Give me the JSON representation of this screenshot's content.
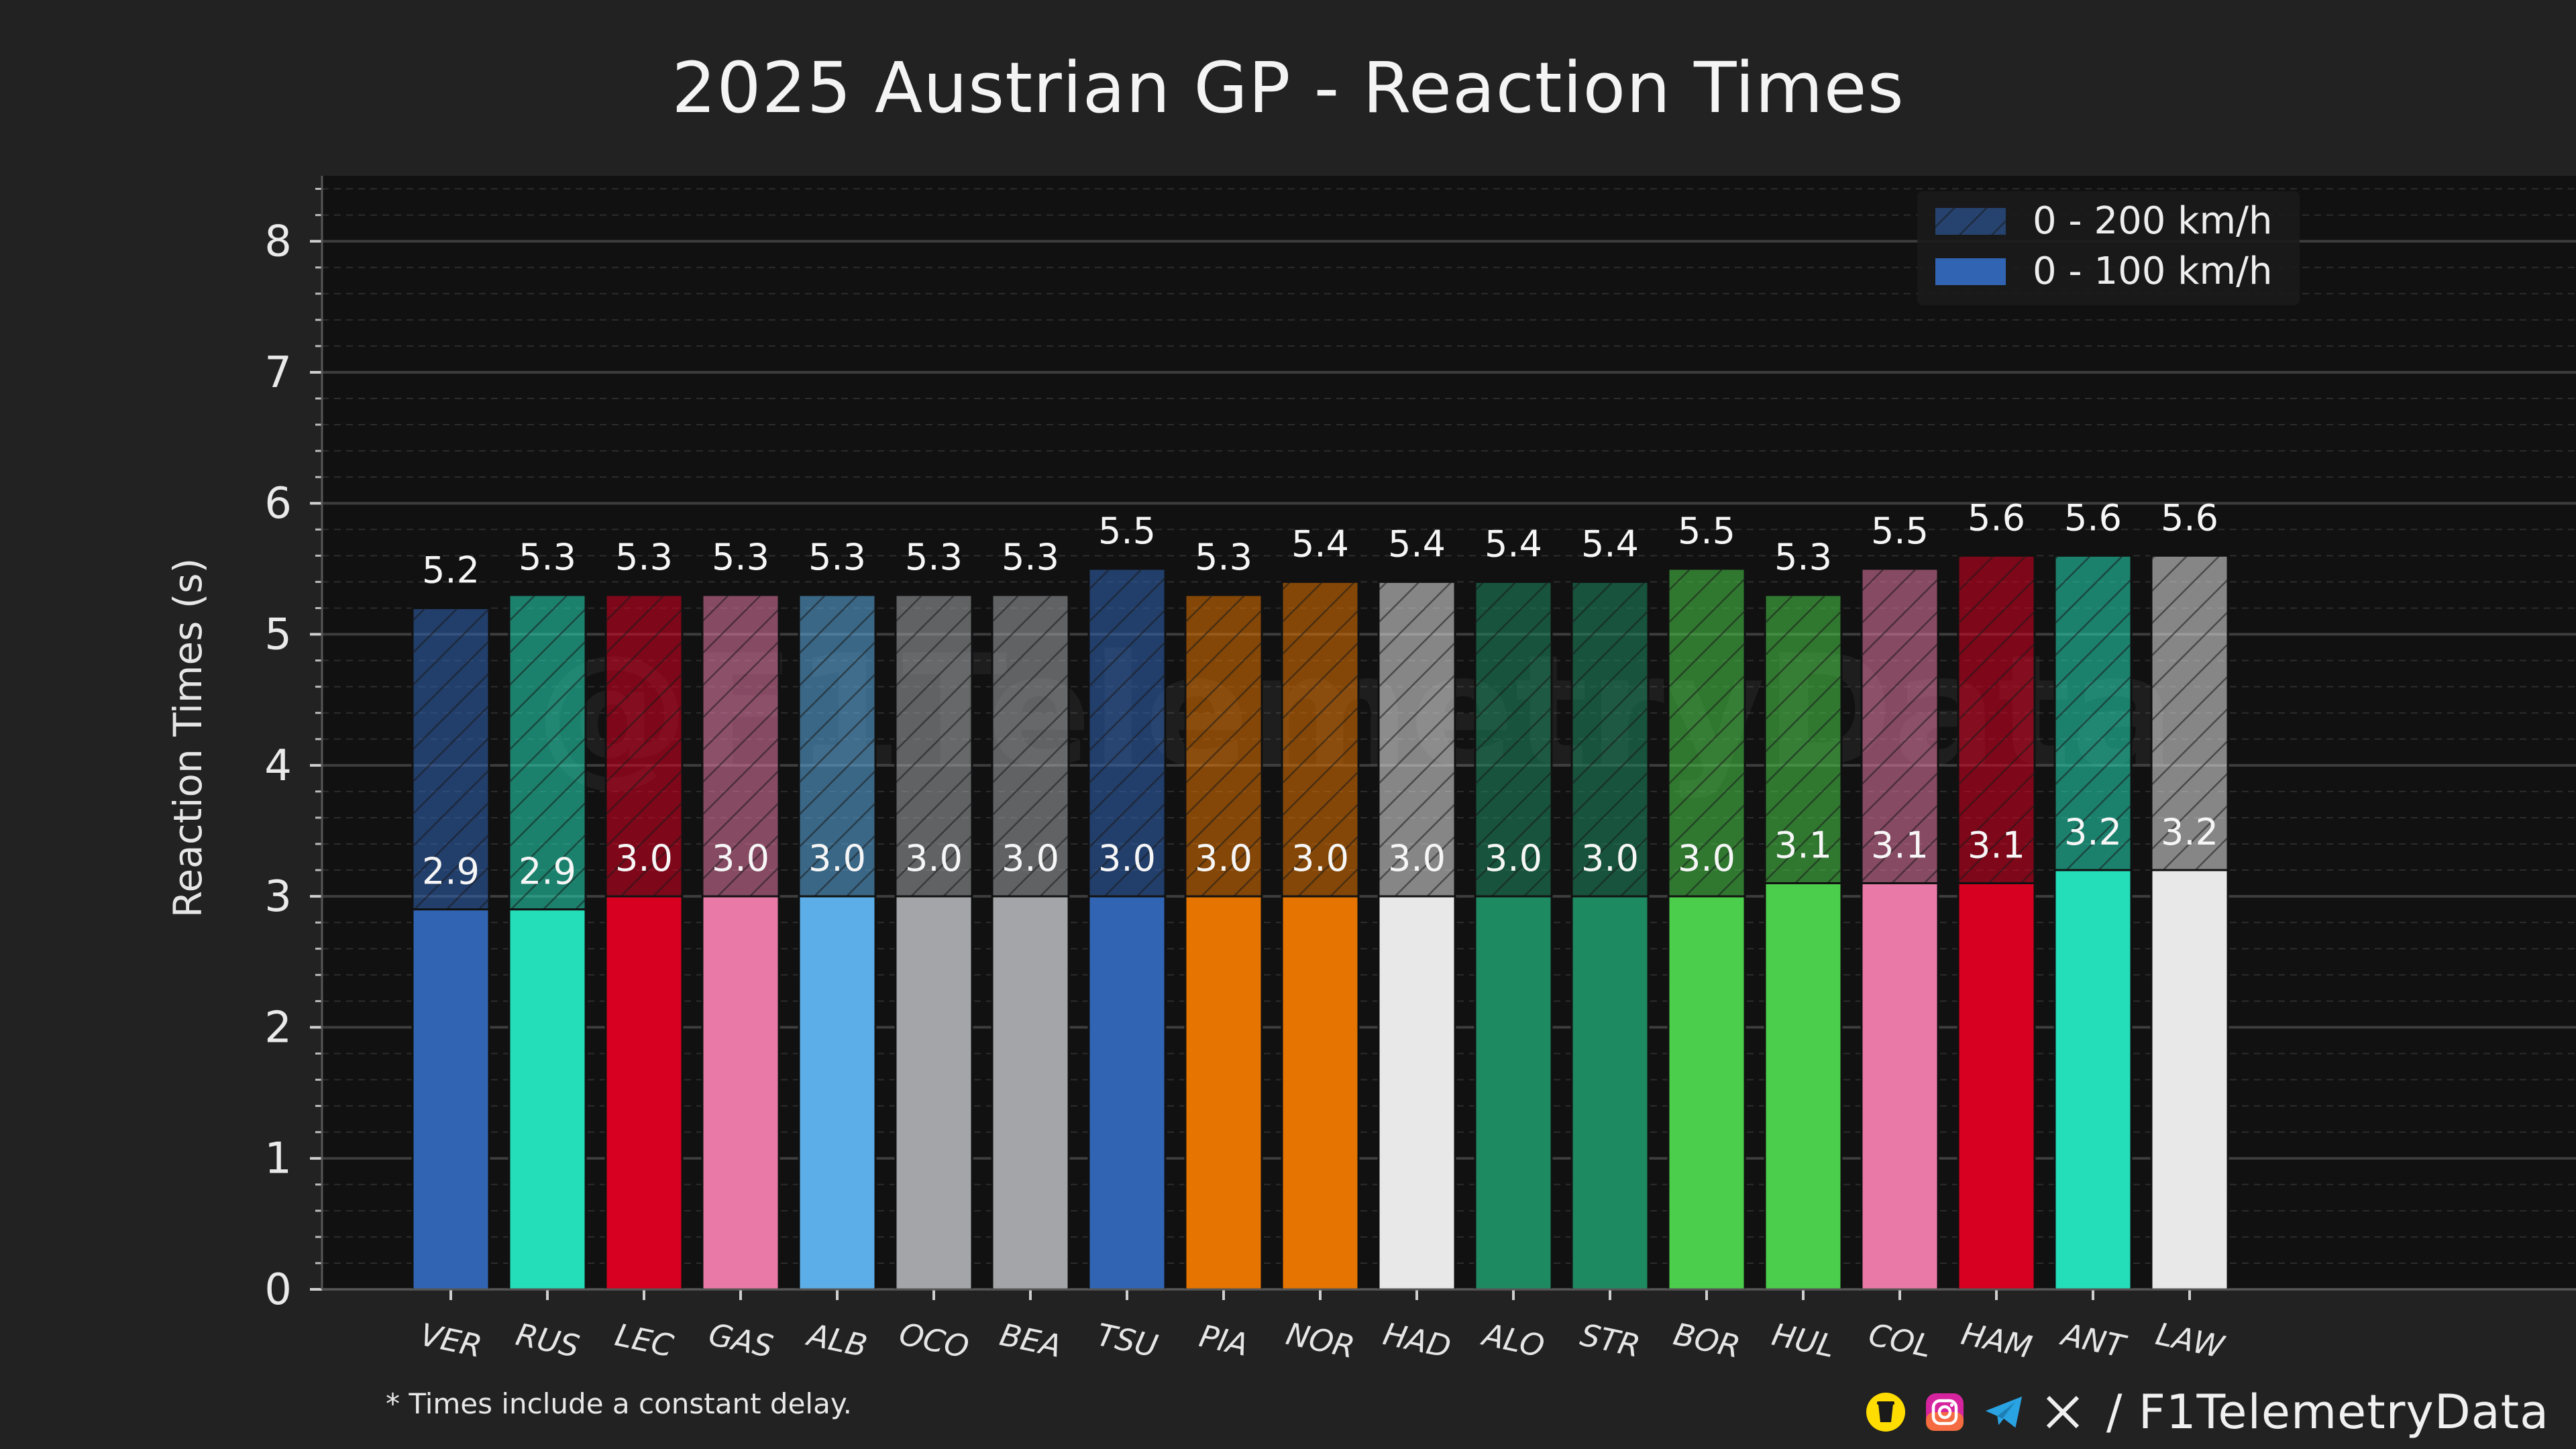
{
  "title": "2025 Austrian GP - Reaction Times",
  "footnote": "* Times include a constant delay.",
  "handle": "/ F1TelemetryData",
  "watermark": "@F1TelemetryData",
  "icons": [
    "coffee-cup-icon",
    "instagram-icon",
    "telegram-icon",
    "x-icon"
  ],
  "colors": {
    "background": "#222222",
    "plot_background": "#111111",
    "grid": "#3a3a3a"
  },
  "chart_data": {
    "type": "bar",
    "ylabel": "Reaction Times (s)",
    "ylim": [
      0,
      8.5
    ],
    "yticks": [
      0,
      1,
      2,
      3,
      4,
      5,
      6,
      7,
      8
    ],
    "grid": true,
    "legend_position": "top-right",
    "categories": [
      "VER",
      "RUS",
      "LEC",
      "GAS",
      "ALB",
      "OCO",
      "BEA",
      "TSU",
      "PIA",
      "NOR",
      "HAD",
      "ALO",
      "STR",
      "BOR",
      "HUL",
      "COL",
      "HAM",
      "ANT",
      "LAW"
    ],
    "bar_colors": [
      "#3165b4",
      "#24deb9",
      "#d80020",
      "#e97aa8",
      "#5caee8",
      "#a3a5a8",
      "#a3a5a8",
      "#3165b4",
      "#e57400",
      "#e57400",
      "#e8e8e8",
      "#1e8a62",
      "#1e8a62",
      "#4bce4b",
      "#4bce4b",
      "#e97aa8",
      "#d80020",
      "#24deb9",
      "#e8e8e8"
    ],
    "series": [
      {
        "name": "0 - 200 km/h",
        "values": [
          5.2,
          5.3,
          5.3,
          5.3,
          5.3,
          5.3,
          5.3,
          5.5,
          5.3,
          5.4,
          5.4,
          5.4,
          5.4,
          5.5,
          5.3,
          5.5,
          5.6,
          5.6,
          5.6
        ]
      },
      {
        "name": "0 - 100 km/h",
        "values": [
          2.9,
          2.9,
          3.0,
          3.0,
          3.0,
          3.0,
          3.0,
          3.0,
          3.0,
          3.0,
          3.0,
          3.0,
          3.0,
          3.0,
          3.1,
          3.1,
          3.1,
          3.2,
          3.2
        ]
      }
    ]
  }
}
